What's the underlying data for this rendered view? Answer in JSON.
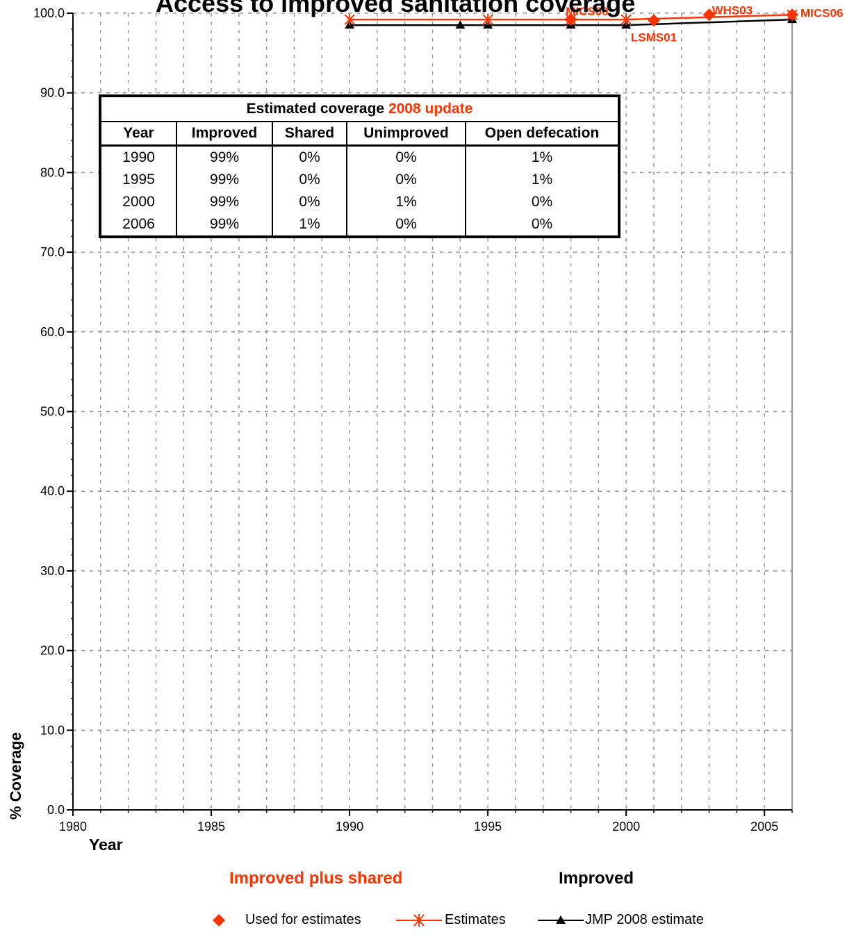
{
  "chart_data": {
    "type": "line",
    "title": "Access to improved sanitation coverage",
    "xlabel": "Year",
    "ylabel": "% Coverage",
    "xlim": [
      1980,
      2006
    ],
    "ylim": [
      0,
      100
    ],
    "x_ticks": [
      "1980",
      "1985",
      "1990",
      "1995",
      "2000",
      "2005"
    ],
    "y_ticks": [
      "0.0",
      "10.0",
      "20.0",
      "30.0",
      "40.0",
      "50.0",
      "60.0",
      "70.0",
      "80.0",
      "90.0",
      "100.0"
    ],
    "grid": true,
    "subtitles": {
      "red": "Improved plus shared",
      "black": "Improved"
    },
    "series": [
      {
        "name": "Used for estimates",
        "color": "#ff3300",
        "marker": "diamond",
        "points": [
          {
            "x": 1998,
            "y": 99.2,
            "label": "MICS00"
          },
          {
            "x": 2001,
            "y": 99.1,
            "label": "LSMS01"
          },
          {
            "x": 2003,
            "y": 99.8,
            "label": "WHS03"
          },
          {
            "x": 2006,
            "y": 99.8,
            "label": "MICS06"
          }
        ]
      },
      {
        "name": "Estimates",
        "color": "#ff3300",
        "marker": "star",
        "points": [
          {
            "x": 1990,
            "y": 99.2
          },
          {
            "x": 1995,
            "y": 99.2
          },
          {
            "x": 1998,
            "y": 99.2
          },
          {
            "x": 2000,
            "y": 99.2
          },
          {
            "x": 2006,
            "y": 99.8
          }
        ]
      },
      {
        "name": "JMP 2008 estimate",
        "color": "#000000",
        "marker": "triangle",
        "points": [
          {
            "x": 1990,
            "y": 98.5
          },
          {
            "x": 1994,
            "y": 98.5
          },
          {
            "x": 1995,
            "y": 98.5
          },
          {
            "x": 1998,
            "y": 98.5
          },
          {
            "x": 2000,
            "y": 98.5
          },
          {
            "x": 2006,
            "y": 99.2
          }
        ]
      }
    ],
    "legend": [
      {
        "label": "Used for estimates",
        "key": "diamond",
        "color": "#ff3300"
      },
      {
        "label": "Estimates",
        "key": "star-line",
        "color": "#ff3300"
      },
      {
        "label": "JMP 2008 estimate",
        "key": "triangle-line",
        "color": "#000000"
      }
    ],
    "legend_position": "bottom",
    "table": {
      "caption_black": "Estimated coverage ",
      "caption_red": "2008 update",
      "headers": [
        "Year",
        "Improved",
        "Shared",
        "Unimproved",
        "Open defecation"
      ],
      "rows": [
        [
          "1990",
          "99%",
          "0%",
          "0%",
          "1%"
        ],
        [
          "1995",
          "99%",
          "0%",
          "0%",
          "1%"
        ],
        [
          "2000",
          "99%",
          "0%",
          "1%",
          "0%"
        ],
        [
          "2006",
          "99%",
          "1%",
          "0%",
          "0%"
        ]
      ]
    }
  }
}
